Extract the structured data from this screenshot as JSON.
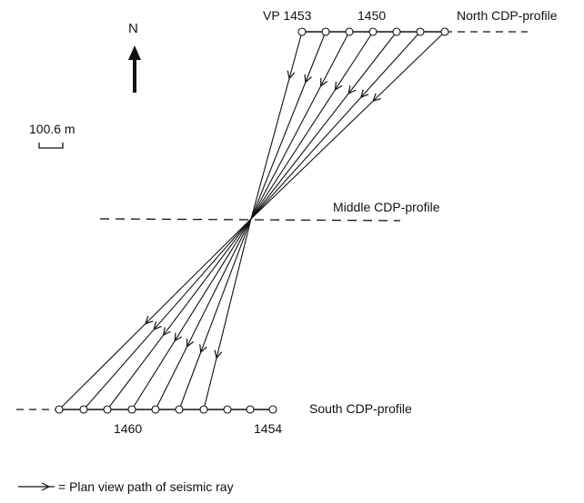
{
  "north_arrow": {
    "label": "N"
  },
  "scale_bar": {
    "label": "100.6 m"
  },
  "profiles": {
    "north": {
      "label": "North CDP-profile",
      "vp_prefix": "VP 1453",
      "vp_end": "1450"
    },
    "middle": {
      "label": "Middle CDP-profile"
    },
    "south": {
      "label": "South CDP-profile",
      "vp_start": "1460",
      "vp_end": "1454"
    }
  },
  "legend": {
    "text": "= Plan view path of seismic ray"
  },
  "colors": {
    "ink": "#111111",
    "background": "#ffffff"
  }
}
